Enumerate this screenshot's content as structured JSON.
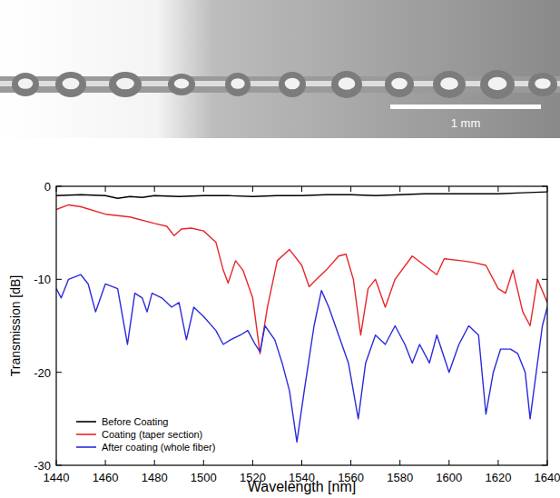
{
  "photo": {
    "scale_bar_label": "1 mm"
  },
  "chart_data": {
    "type": "line",
    "xlabel": "Wavelength [nm]",
    "ylabel": "Transmission [dB]",
    "xlim": [
      1440,
      1640
    ],
    "ylim": [
      -30,
      0
    ],
    "xticks": [
      1440,
      1460,
      1480,
      1500,
      1520,
      1540,
      1560,
      1580,
      1600,
      1620,
      1640
    ],
    "yticks": [
      -30,
      -20,
      -10,
      0
    ],
    "grid": false,
    "legend": "lower left",
    "series": [
      {
        "name": "Before Coating",
        "color": "#000000",
        "x": [
          1440,
          1450,
          1460,
          1465,
          1470,
          1475,
          1480,
          1490,
          1500,
          1510,
          1520,
          1530,
          1540,
          1550,
          1560,
          1570,
          1580,
          1590,
          1600,
          1610,
          1620,
          1630,
          1640
        ],
        "values": [
          -1.0,
          -0.9,
          -1.0,
          -1.3,
          -1.1,
          -1.2,
          -1.0,
          -1.1,
          -1.0,
          -1.0,
          -1.1,
          -1.0,
          -1.0,
          -0.9,
          -0.9,
          -1.0,
          -0.9,
          -0.8,
          -0.8,
          -0.8,
          -0.8,
          -0.7,
          -0.6
        ]
      },
      {
        "name": "Coating (taper section)",
        "color": "#e8262a",
        "x": [
          1440,
          1445,
          1450,
          1460,
          1470,
          1480,
          1485,
          1488,
          1491,
          1495,
          1500,
          1505,
          1508,
          1510,
          1513,
          1516,
          1520,
          1523,
          1526,
          1530,
          1535,
          1540,
          1543,
          1546,
          1550,
          1555,
          1558,
          1561,
          1564,
          1567,
          1570,
          1574,
          1578,
          1585,
          1590,
          1595,
          1598,
          1605,
          1610,
          1615,
          1620,
          1623,
          1626,
          1630,
          1633,
          1636,
          1640
        ],
        "values": [
          -2.5,
          -2.0,
          -2.2,
          -3.0,
          -3.3,
          -4.0,
          -4.3,
          -5.3,
          -4.6,
          -4.5,
          -4.8,
          -6.0,
          -9.0,
          -10.4,
          -8.0,
          -9.0,
          -12.0,
          -18.0,
          -13.0,
          -8.0,
          -6.8,
          -8.5,
          -10.8,
          -10.0,
          -9.0,
          -7.5,
          -7.3,
          -10.0,
          -16.0,
          -11.0,
          -10.0,
          -13.0,
          -10.0,
          -7.5,
          -8.5,
          -9.5,
          -7.8,
          -8.0,
          -8.2,
          -8.5,
          -11.0,
          -11.5,
          -9.0,
          -13.5,
          -15.0,
          -10.0,
          -12.5
        ]
      },
      {
        "name": "After coating (whole fiber)",
        "color": "#2b2bdc",
        "x": [
          1440,
          1442,
          1445,
          1450,
          1453,
          1456,
          1460,
          1465,
          1469,
          1472,
          1475,
          1477,
          1479,
          1483,
          1487,
          1490,
          1493,
          1496,
          1500,
          1505,
          1508,
          1511,
          1515,
          1518,
          1521,
          1523,
          1525,
          1529,
          1532,
          1535,
          1538,
          1541,
          1545,
          1548,
          1551,
          1555,
          1559,
          1563,
          1566,
          1570,
          1574,
          1578,
          1582,
          1585,
          1588,
          1592,
          1595,
          1600,
          1604,
          1608,
          1612,
          1615,
          1618,
          1621,
          1625,
          1628,
          1631,
          1633,
          1635,
          1638,
          1640
        ],
        "values": [
          -11.0,
          -12.0,
          -10.0,
          -9.5,
          -10.5,
          -13.5,
          -10.5,
          -11.0,
          -17.0,
          -11.5,
          -12.0,
          -13.5,
          -11.5,
          -12.0,
          -13.0,
          -12.5,
          -16.5,
          -13.0,
          -14.0,
          -15.5,
          -17.0,
          -16.5,
          -16.0,
          -15.5,
          -17.0,
          -17.8,
          -15.0,
          -16.5,
          -19.0,
          -22.0,
          -27.5,
          -22.0,
          -15.0,
          -11.2,
          -13.0,
          -16.0,
          -19.0,
          -25.0,
          -19.0,
          -16.0,
          -17.0,
          -15.0,
          -17.0,
          -19.0,
          -17.0,
          -19.0,
          -16.0,
          -20.0,
          -17.0,
          -15.0,
          -16.0,
          -24.5,
          -20.0,
          -17.5,
          -17.5,
          -18.0,
          -20.0,
          -25.0,
          -21.0,
          -15.0,
          -13.0
        ]
      }
    ]
  }
}
